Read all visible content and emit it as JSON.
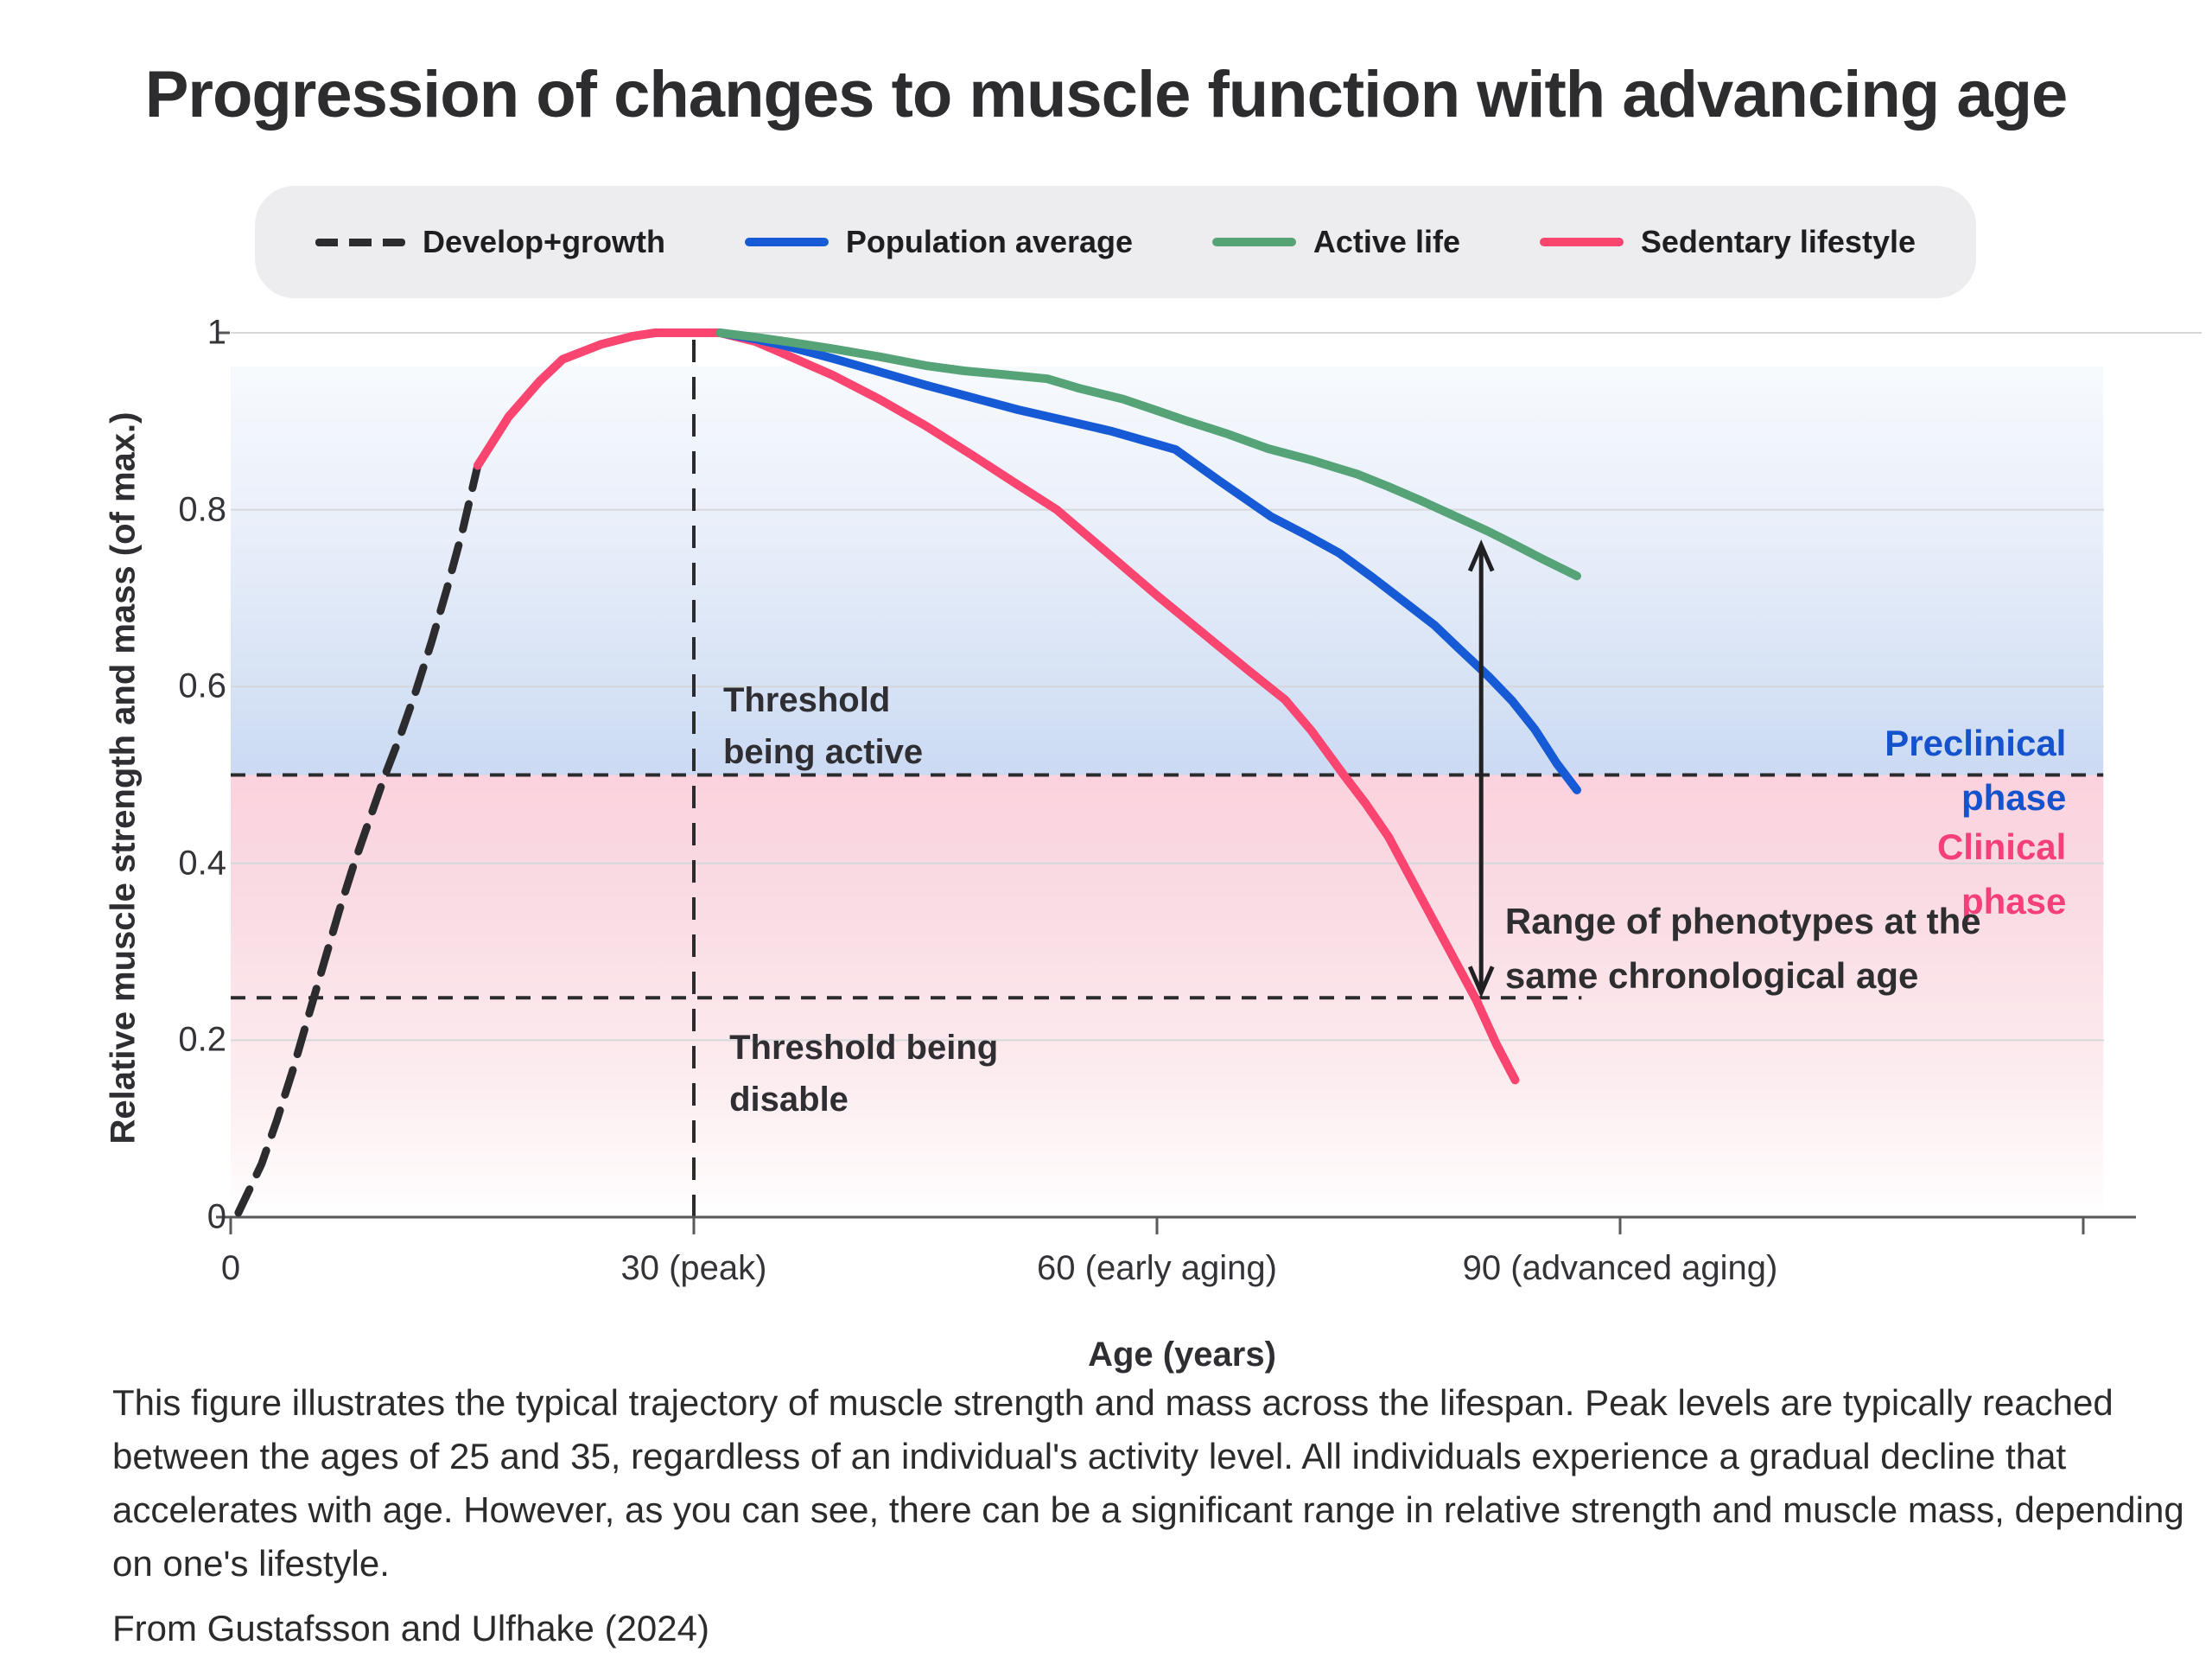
{
  "title": "Progression of changes to muscle function with advancing age",
  "legend": {
    "items": [
      {
        "label": "Develop+growth",
        "swatch": "dashed",
        "color": "#2c2c2e"
      },
      {
        "label": "Population average",
        "swatch": "solid",
        "color": "#165ad6"
      },
      {
        "label": "Active life",
        "swatch": "solid",
        "color": "#56a377"
      },
      {
        "label": "Sedentary lifestyle",
        "swatch": "solid",
        "color": "#f9456f"
      }
    ]
  },
  "chart_data": {
    "type": "line",
    "title": "Progression of changes to muscle function with advancing age",
    "xlabel": "Age (years)",
    "ylabel": "Relative muscle strength and mass (of max.)",
    "xlim": [
      0,
      123
    ],
    "ylim": [
      0,
      1
    ],
    "grid": true,
    "legend_position": "top",
    "x_ticks": [
      {
        "value": 0,
        "label": "0"
      },
      {
        "value": 30,
        "label": "30 (peak)"
      },
      {
        "value": 60,
        "label": "60 (early aging)"
      },
      {
        "value": 90,
        "label": "90 (advanced aging)"
      },
      {
        "value": 120,
        "label": ""
      }
    ],
    "y_ticks": [
      {
        "value": 0,
        "label": "0"
      },
      {
        "value": 0.2,
        "label": "0.2"
      },
      {
        "value": 0.4,
        "label": "0.4"
      },
      {
        "value": 0.6,
        "label": "0.6"
      },
      {
        "value": 0.8,
        "label": "0.8"
      },
      {
        "value": 1,
        "label": "1"
      }
    ],
    "bands": [
      {
        "name": "preclinical",
        "y_from": 0.5,
        "y_to": 0.962,
        "x_from": 0,
        "x_to": 121.3,
        "color_top": "#f7fafd",
        "color_bottom": "#cbdaf3"
      },
      {
        "name": "clinical",
        "y_from": 0,
        "y_to": 0.5,
        "x_from": 0,
        "x_to": 121.3,
        "color_top": "#fbd2dd",
        "color_bottom": "#ffffff"
      }
    ],
    "threshold_lines": [
      {
        "name": "threshold-being-active",
        "y": 0.5,
        "x_from": 0,
        "x_to": 121.3
      },
      {
        "name": "threshold-being-disable",
        "y": 0.248,
        "x_from": 0,
        "x_to": 87.5
      }
    ],
    "peak_marker_x": 30,
    "series": [
      {
        "name": "Develop+growth",
        "color": "#2c2c2e",
        "dashed": true,
        "width": 9,
        "points": [
          [
            0.5,
            0.005
          ],
          [
            2,
            0.06
          ],
          [
            3,
            0.11
          ],
          [
            4,
            0.165
          ],
          [
            5,
            0.225
          ],
          [
            6,
            0.285
          ],
          [
            7,
            0.345
          ],
          [
            8,
            0.4
          ],
          [
            9,
            0.45
          ],
          [
            10,
            0.5
          ],
          [
            11,
            0.545
          ],
          [
            12,
            0.595
          ],
          [
            13,
            0.65
          ],
          [
            14,
            0.71
          ],
          [
            15,
            0.775
          ],
          [
            16,
            0.85
          ]
        ]
      },
      {
        "name": "Sedentary lifestyle",
        "color": "#f9456f",
        "dashed": false,
        "width": 10,
        "points": [
          [
            16,
            0.85
          ],
          [
            18,
            0.905
          ],
          [
            20,
            0.945
          ],
          [
            21.5,
            0.97
          ],
          [
            24,
            0.987
          ],
          [
            26,
            0.996
          ],
          [
            27.5,
            1.0
          ],
          [
            31.7,
            1.0
          ],
          [
            34,
            0.99
          ],
          [
            36,
            0.975
          ],
          [
            39,
            0.952
          ],
          [
            42,
            0.925
          ],
          [
            45,
            0.895
          ],
          [
            48,
            0.862
          ],
          [
            51,
            0.828
          ],
          [
            53.5,
            0.8
          ],
          [
            57,
            0.748
          ],
          [
            60,
            0.703
          ],
          [
            63,
            0.66
          ],
          [
            65.8,
            0.62
          ],
          [
            68.3,
            0.585
          ],
          [
            70,
            0.55
          ],
          [
            72.1,
            0.5
          ],
          [
            73.5,
            0.468
          ],
          [
            75,
            0.43
          ],
          [
            77,
            0.365
          ],
          [
            79,
            0.3
          ],
          [
            80.7,
            0.245
          ],
          [
            82,
            0.195
          ],
          [
            83.2,
            0.155
          ]
        ]
      },
      {
        "name": "Population average",
        "color": "#165ad6",
        "dashed": false,
        "width": 10,
        "points": [
          [
            31.7,
            1.0
          ],
          [
            34,
            0.993
          ],
          [
            36,
            0.985
          ],
          [
            39,
            0.971
          ],
          [
            42,
            0.956
          ],
          [
            45,
            0.941
          ],
          [
            48,
            0.927
          ],
          [
            51,
            0.913
          ],
          [
            54,
            0.901
          ],
          [
            57,
            0.889
          ],
          [
            59,
            0.879
          ],
          [
            61.2,
            0.868
          ],
          [
            64,
            0.833
          ],
          [
            67.4,
            0.792
          ],
          [
            69.6,
            0.772
          ],
          [
            71.8,
            0.751
          ],
          [
            74,
            0.723
          ],
          [
            76,
            0.696
          ],
          [
            78,
            0.669
          ],
          [
            79.5,
            0.644
          ],
          [
            81.5,
            0.611
          ],
          [
            83,
            0.584
          ],
          [
            84.5,
            0.551
          ],
          [
            85.9,
            0.513
          ],
          [
            87.2,
            0.483
          ]
        ]
      },
      {
        "name": "Active life",
        "color": "#56a377",
        "dashed": false,
        "width": 10,
        "points": [
          [
            31.7,
            1.0
          ],
          [
            34,
            0.995
          ],
          [
            36,
            0.99
          ],
          [
            39,
            0.982
          ],
          [
            42,
            0.973
          ],
          [
            45,
            0.963
          ],
          [
            47.5,
            0.957
          ],
          [
            50,
            0.953
          ],
          [
            52.9,
            0.948
          ],
          [
            55,
            0.937
          ],
          [
            57.8,
            0.925
          ],
          [
            60,
            0.912
          ],
          [
            62,
            0.9
          ],
          [
            64.5,
            0.886
          ],
          [
            67.2,
            0.869
          ],
          [
            70,
            0.856
          ],
          [
            73,
            0.84
          ],
          [
            75,
            0.826
          ],
          [
            77,
            0.811
          ],
          [
            79,
            0.795
          ],
          [
            81.4,
            0.776
          ],
          [
            83,
            0.762
          ],
          [
            85,
            0.744
          ],
          [
            87.2,
            0.725
          ]
        ]
      }
    ],
    "range_arrow": {
      "x": 81,
      "y_from": 0.252,
      "y_to": 0.762,
      "color": "#212124"
    },
    "annotations": [
      {
        "id": "threshold-active-label",
        "text": "Threshold\nbeing active",
        "x": 31.9,
        "y_top": 0.614,
        "align": "left",
        "color": "#2f2f33",
        "size": 40,
        "weight": 700
      },
      {
        "id": "threshold-disable-label",
        "text": "Threshold being\ndisable",
        "x": 32.3,
        "y_top": 0.221,
        "align": "left",
        "color": "#2f2f33",
        "size": 40,
        "weight": 700
      },
      {
        "id": "preclinical-phase-label",
        "text": "Preclinical phase",
        "x": 118.9,
        "y_top": 0.567,
        "align": "right",
        "color": "#1553cd",
        "size": 42,
        "weight": 700
      },
      {
        "id": "clinical-phase-label",
        "text": "Clinical phase",
        "x": 118.9,
        "y_top": 0.45,
        "align": "right",
        "color": "#f43f7a",
        "size": 42,
        "weight": 700
      },
      {
        "id": "range-of-phenotypes-label",
        "text": "Range of phenotypes at the\nsame chronological age",
        "x": 82.55,
        "y_top": 0.366,
        "align": "left",
        "color": "#2e2e31",
        "size": 42,
        "weight": 700
      }
    ]
  },
  "caption": "This figure illustrates the typical trajectory of muscle strength and mass across the lifespan. Peak levels are typically reached between the ages of 25 and 35, regardless of an individual's activity level. All individuals experience a gradual decline that accelerates with age. However, as you can see, there can be a significant range in relative strength and muscle mass, depending on one's lifestyle.",
  "source": "From Gustafsson and Ulfhake (2024)"
}
